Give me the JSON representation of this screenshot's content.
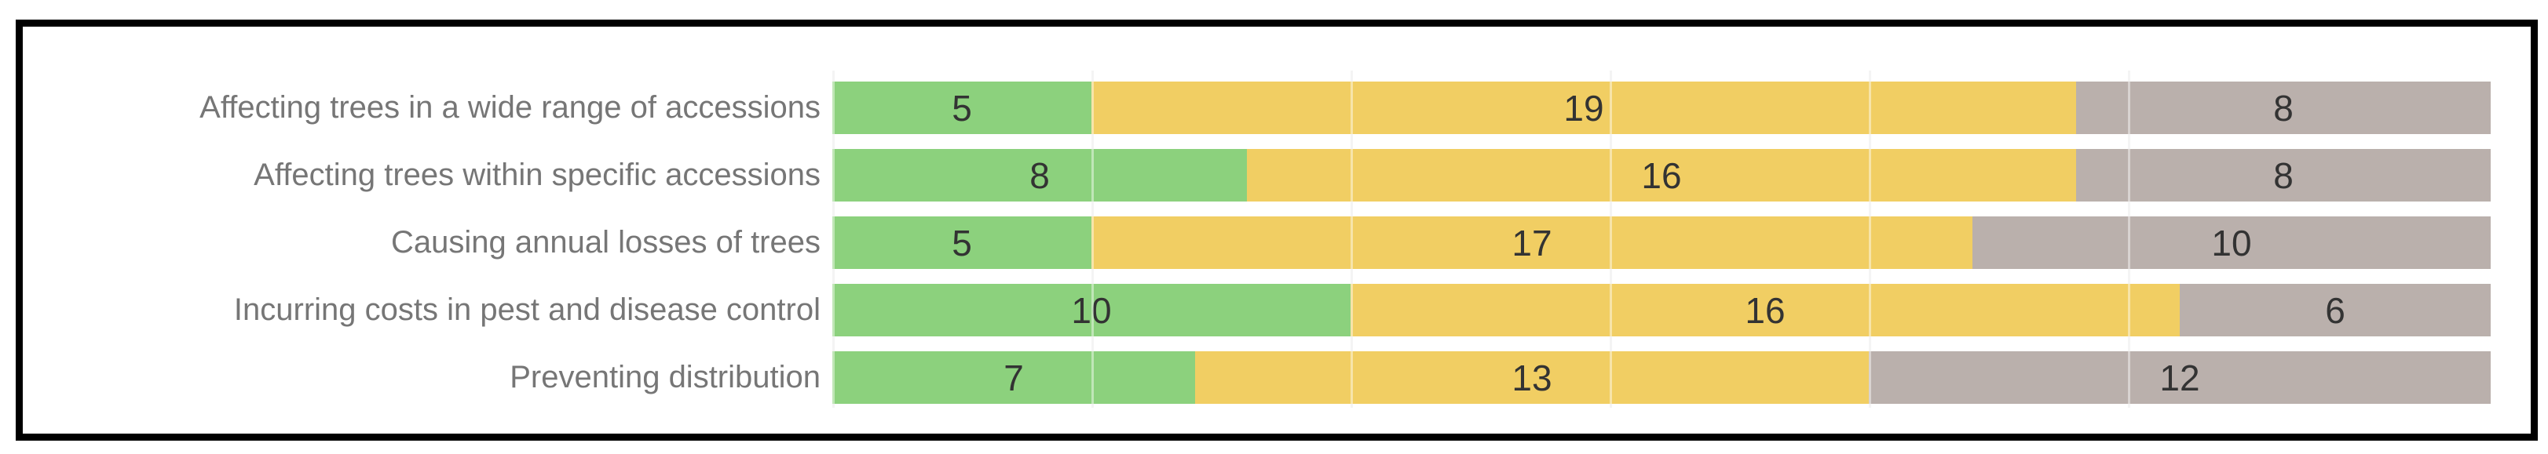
{
  "page": {
    "background": "#ffffff",
    "frame_border_color": "#000000",
    "gridline_color": "#ebebeb",
    "category_label_color": "#767676",
    "value_label_color": "#333333"
  },
  "chart_data": {
    "type": "bar",
    "orientation": "horizontal",
    "stacked": true,
    "title": "",
    "xlabel": "",
    "ylabel": "",
    "legend": "none",
    "grid": "vertical-only",
    "xlim": [
      0,
      32
    ],
    "gridline_step": 5,
    "categories": [
      "Affecting trees in a wide range of accessions",
      "Affecting trees within specific accessions",
      "Causing annual losses of trees",
      "Incurring costs in pest and disease control",
      "Preventing distribution"
    ],
    "series": [
      {
        "name": "green",
        "color": "#8CD17D",
        "values": [
          5,
          8,
          5,
          10,
          7
        ]
      },
      {
        "name": "yellow",
        "color": "#F1CE63",
        "values": [
          19,
          16,
          17,
          16,
          13
        ]
      },
      {
        "name": "gray",
        "color": "#BAB0AC",
        "values": [
          8,
          8,
          10,
          6,
          12
        ]
      }
    ],
    "row_totals": [
      32,
      32,
      32,
      32,
      32
    ],
    "bar_value_labels_shown": true
  }
}
